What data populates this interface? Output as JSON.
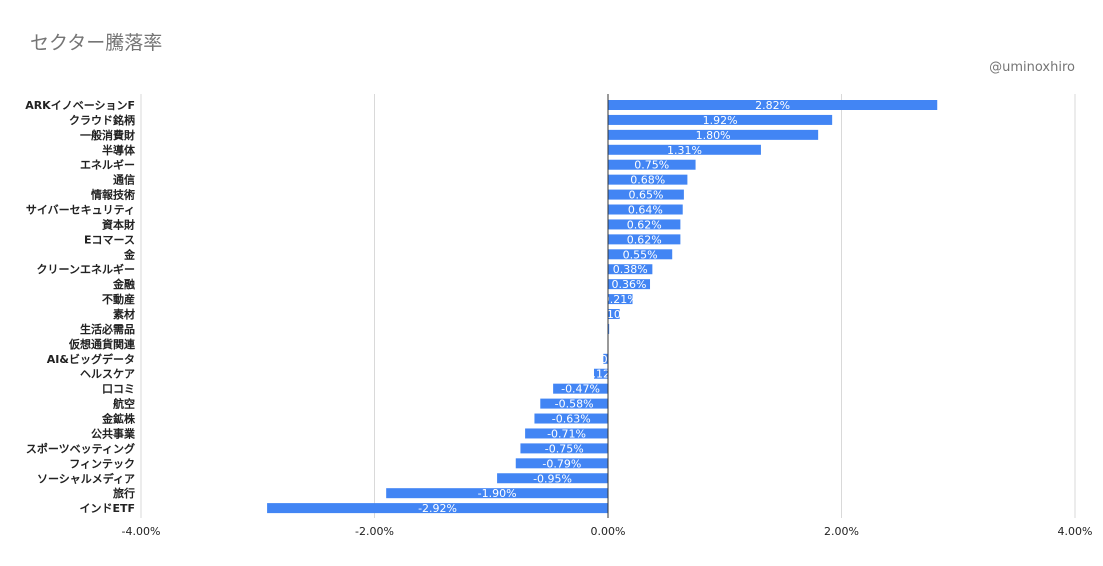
{
  "chart_data": {
    "type": "bar",
    "orientation": "horizontal",
    "title": "セクター騰落率",
    "credit": "@uminoxhiro",
    "categories": [
      "ARKイノベーションF",
      "クラウド銘柄",
      "一般消費財",
      "半導体",
      "エネルギー",
      "通信",
      "情報技術",
      "サイバーセキュリティ",
      "資本財",
      "Eコマース",
      "金",
      "クリーンエネルギー",
      "金融",
      "不動産",
      "素材",
      "生活必需品",
      "仮想通貨関連",
      "AI&ビッグデータ",
      "ヘルスケア",
      "口コミ",
      "航空",
      "金鉱株",
      "公共事業",
      "スポーツベッティング",
      "フィンテック",
      "ソーシャルメディア",
      "旅行",
      "インドETF"
    ],
    "values": [
      2.82,
      1.92,
      1.8,
      1.31,
      0.75,
      0.68,
      0.65,
      0.64,
      0.62,
      0.62,
      0.55,
      0.38,
      0.36,
      0.21,
      0.1,
      0.01,
      0.0,
      -0.04,
      -0.12,
      -0.47,
      -0.58,
      -0.63,
      -0.71,
      -0.75,
      -0.79,
      -0.95,
      -1.9,
      -2.92
    ],
    "data_labels": [
      "2.82%",
      "1.92%",
      "1.80%",
      "1.31%",
      "0.75%",
      "0.68%",
      "0.65%",
      "0.64%",
      "0.62%",
      "0.62%",
      "0.55%",
      "0.38%",
      "0.36%",
      "0.21%",
      "0.10%",
      "0.01%",
      "0.00%",
      "-0.04%",
      "-0.12%",
      "-0.47%",
      "-0.58%",
      "-0.63%",
      "-0.71%",
      "-0.75%",
      "-0.79%",
      "-0.95%",
      "-1.90%",
      "-2.92%"
    ],
    "xticks": [
      -4,
      -2,
      0,
      2,
      4
    ],
    "xtick_labels": [
      "-4.00%",
      "-2.00%",
      "0.00%",
      "2.00%",
      "4.00%"
    ],
    "xlim": [
      -4,
      4
    ],
    "grid": true,
    "bar_color": "#4285f4"
  }
}
